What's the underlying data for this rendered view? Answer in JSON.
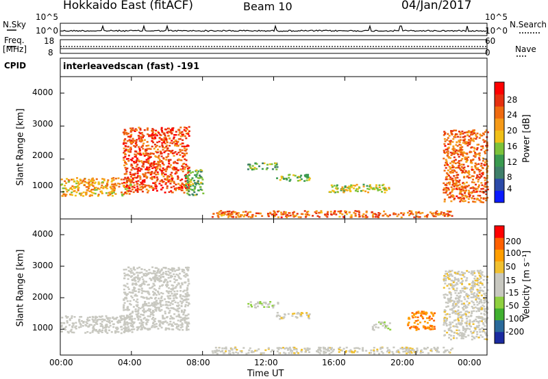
{
  "header": {
    "station": "Hokkaido East (fitACF)",
    "beam": "Beam 10",
    "date": "04/Jan/2017"
  },
  "left_labels": {
    "nsky": "N.Sky",
    "freq": "Freq.",
    "freq_unit": "[MHz]",
    "cpid": "CPID"
  },
  "right_labels": {
    "nsearch": "N.Search",
    "nave": "Nave"
  },
  "cpid_text": "interleavedscan (fast) -191",
  "noise_axis": {
    "left_ticks": [
      "10^5",
      "10^0"
    ],
    "right_ticks": [
      "10^5",
      "10^0"
    ]
  },
  "freq_axis": {
    "left_ticks": [
      "18",
      "8"
    ],
    "right_ticks": [
      "60",
      "0"
    ]
  },
  "power_panel": {
    "ylabel": "Slant Range [km]",
    "yticks": [
      "4000",
      "3000",
      "2000",
      "1000"
    ],
    "cbar_label": "Power [dB]",
    "cbar_ticks": [
      "28",
      "24",
      "20",
      "16",
      "12",
      "8",
      "4"
    ]
  },
  "velocity_panel": {
    "ylabel": "Slant Range [km]",
    "yticks": [
      "4000",
      "3000",
      "2000",
      "1000"
    ],
    "cbar_label": "Velocity [m s⁻¹]",
    "cbar_ticks": [
      "200",
      "100",
      "50",
      "15",
      "-15",
      "-50",
      "-100",
      "-200"
    ]
  },
  "xaxis": {
    "ticks": [
      "00:00",
      "04:00",
      "08:00",
      "12:00",
      "16:00",
      "20:00",
      "00:00"
    ],
    "label": "Time UT"
  },
  "colors": {
    "power_scale": [
      "#0a1aff",
      "#2b4aa8",
      "#3f7f6a",
      "#3a9a50",
      "#7cc23a",
      "#f0c018",
      "#f59a18",
      "#ef6a10",
      "#e63010",
      "#ff0000"
    ],
    "velocity_scale": [
      "#ff0000",
      "#ff6000",
      "#ff9e00",
      "#f0c030",
      "#c8c8c0",
      "#c8c8c0",
      "#8fd040",
      "#40b030",
      "#2a6a9a",
      "#1a2aa0"
    ],
    "axis": "#000000"
  },
  "chart_data": [
    {
      "type": "heatmap",
      "title": "Power",
      "xlabel": "Time UT",
      "ylabel": "Slant Range [km]",
      "xlim": [
        0,
        24
      ],
      "ylim": [
        180,
        4500
      ],
      "colorbar": {
        "label": "Power [dB]",
        "range": [
          0,
          32
        ]
      },
      "echo_regions": [
        {
          "t": [
            0.0,
            4.0
          ],
          "range_km": [
            900,
            1450
          ],
          "value_db": 20
        },
        {
          "t": [
            3.5,
            7.2
          ],
          "range_km": [
            1000,
            3000
          ],
          "value_db": 26
        },
        {
          "t": [
            7.0,
            8.0
          ],
          "range_km": [
            900,
            1700
          ],
          "value_db": 12
        },
        {
          "t": [
            8.5,
            22.0
          ],
          "range_km": [
            250,
            450
          ],
          "value_db": 24
        },
        {
          "t": [
            10.5,
            12.2
          ],
          "range_km": [
            1700,
            1900
          ],
          "value_db": 12
        },
        {
          "t": [
            12.0,
            14.0
          ],
          "range_km": [
            1350,
            1550
          ],
          "value_db": 14
        },
        {
          "t": [
            15.0,
            18.5
          ],
          "range_km": [
            1000,
            1250
          ],
          "value_db": 16
        },
        {
          "t": [
            21.5,
            24.0
          ],
          "range_km": [
            700,
            2900
          ],
          "value_db": 24
        }
      ]
    },
    {
      "type": "heatmap",
      "title": "Velocity",
      "xlabel": "Time UT",
      "ylabel": "Slant Range [km]",
      "xlim": [
        0,
        24
      ],
      "ylim": [
        180,
        4500
      ],
      "colorbar": {
        "label": "Velocity [m s⁻¹]",
        "range": [
          -250,
          250
        ]
      },
      "echo_regions": [
        {
          "t": [
            0.0,
            4.0
          ],
          "range_km": [
            900,
            1450
          ],
          "value_ms": 0
        },
        {
          "t": [
            3.5,
            7.2
          ],
          "range_km": [
            1000,
            3000
          ],
          "value_ms": 0
        },
        {
          "t": [
            8.5,
            22.0
          ],
          "range_km": [
            250,
            450
          ],
          "value_ms": 30
        },
        {
          "t": [
            10.5,
            12.2
          ],
          "range_km": [
            1700,
            1900
          ],
          "value_ms": -40
        },
        {
          "t": [
            12.0,
            14.0
          ],
          "range_km": [
            1350,
            1550
          ],
          "value_ms": 40
        },
        {
          "t": [
            17.5,
            18.5
          ],
          "range_km": [
            1000,
            1250
          ],
          "value_ms": -40
        },
        {
          "t": [
            19.5,
            21.0
          ],
          "range_km": [
            1000,
            1600
          ],
          "value_ms": 150
        },
        {
          "t": [
            21.5,
            24.0
          ],
          "range_km": [
            700,
            2900
          ],
          "value_ms": 30
        }
      ]
    }
  ]
}
